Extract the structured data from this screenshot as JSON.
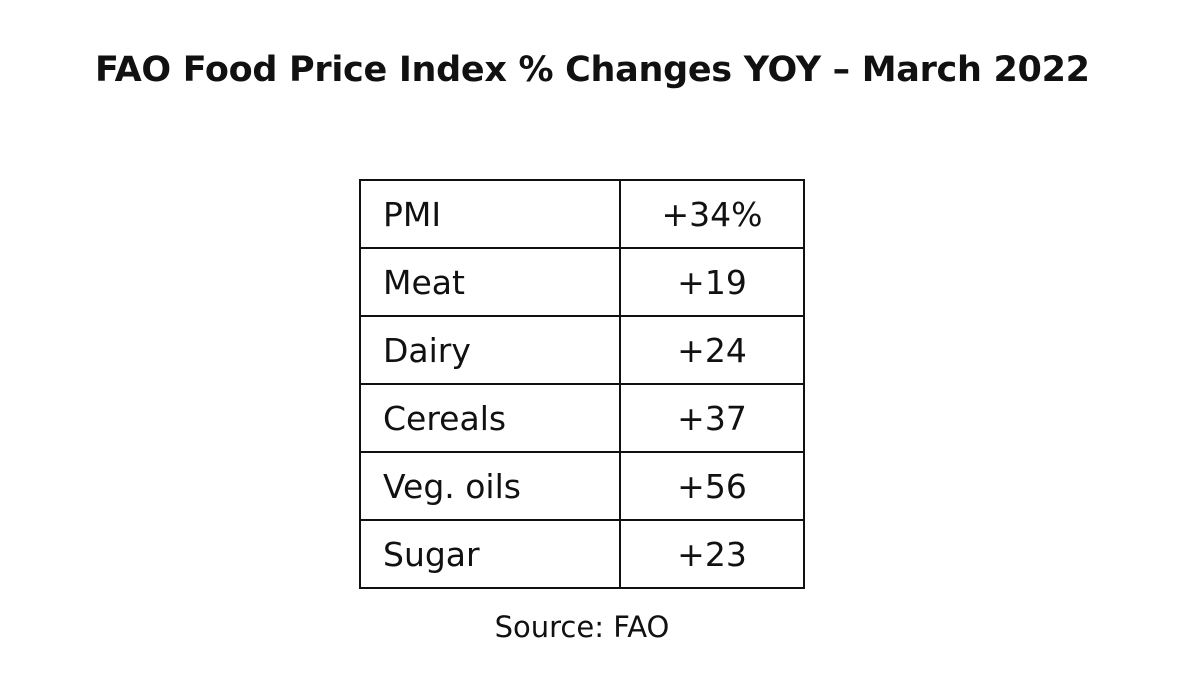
{
  "header": {
    "title": "FAO Food Price Index % Changes YOY – March 2022"
  },
  "table": {
    "rows": [
      [
        "PMI",
        "+34%"
      ],
      [
        "Meat",
        "+19"
      ],
      [
        "Dairy",
        "+24"
      ],
      [
        "Cereals",
        "+37"
      ],
      [
        "Veg. oils",
        "+56"
      ],
      [
        "Sugar",
        "+23"
      ]
    ]
  },
  "footer": {
    "source": "Source: FAO"
  }
}
